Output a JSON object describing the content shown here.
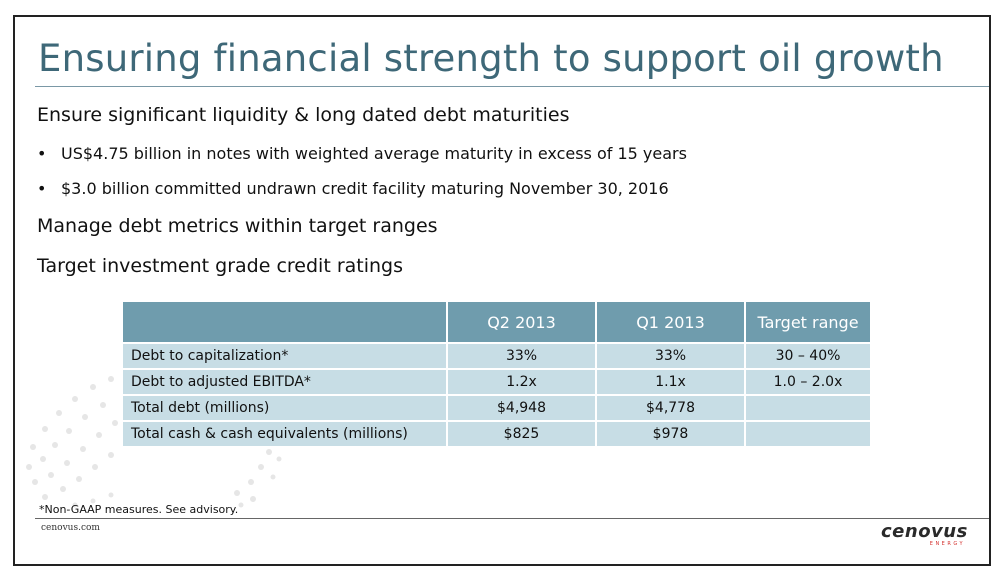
{
  "title": "Ensuring financial strength to support oil growth",
  "section1": {
    "heading": "Ensure significant liquidity & long dated debt maturities",
    "bullets": [
      "US$4.75 billion in notes with weighted average maturity in excess of 15 years",
      "$3.0 billion committed undrawn credit facility maturing November 30, 2016"
    ]
  },
  "section2": {
    "heading": "Manage debt metrics within target ranges"
  },
  "section3": {
    "heading": "Target investment grade credit ratings"
  },
  "table": {
    "headers": [
      "",
      "Q2 2013",
      "Q1 2013",
      "Target range"
    ],
    "rows": [
      [
        "Debt to capitalization*",
        "33%",
        "33%",
        "30 – 40%"
      ],
      [
        "Debt to adjusted EBITDA*",
        "1.2x",
        "1.1x",
        "1.0 – 2.0x"
      ],
      [
        "Total debt (millions)",
        "$4,948",
        "$4,778",
        ""
      ],
      [
        "Total cash & cash equivalents (millions)",
        "$825",
        "$978",
        ""
      ]
    ]
  },
  "footnote": "*Non-GAAP measures. See advisory.",
  "footer": {
    "url": "cenovus.com",
    "logo": "cenovus",
    "logo_sub": "ENERGY"
  },
  "colors": {
    "title": "#3e6878",
    "table_header": "#6f9cad",
    "table_cell": "#c7dde5",
    "logo_accent": "#d4312e"
  }
}
